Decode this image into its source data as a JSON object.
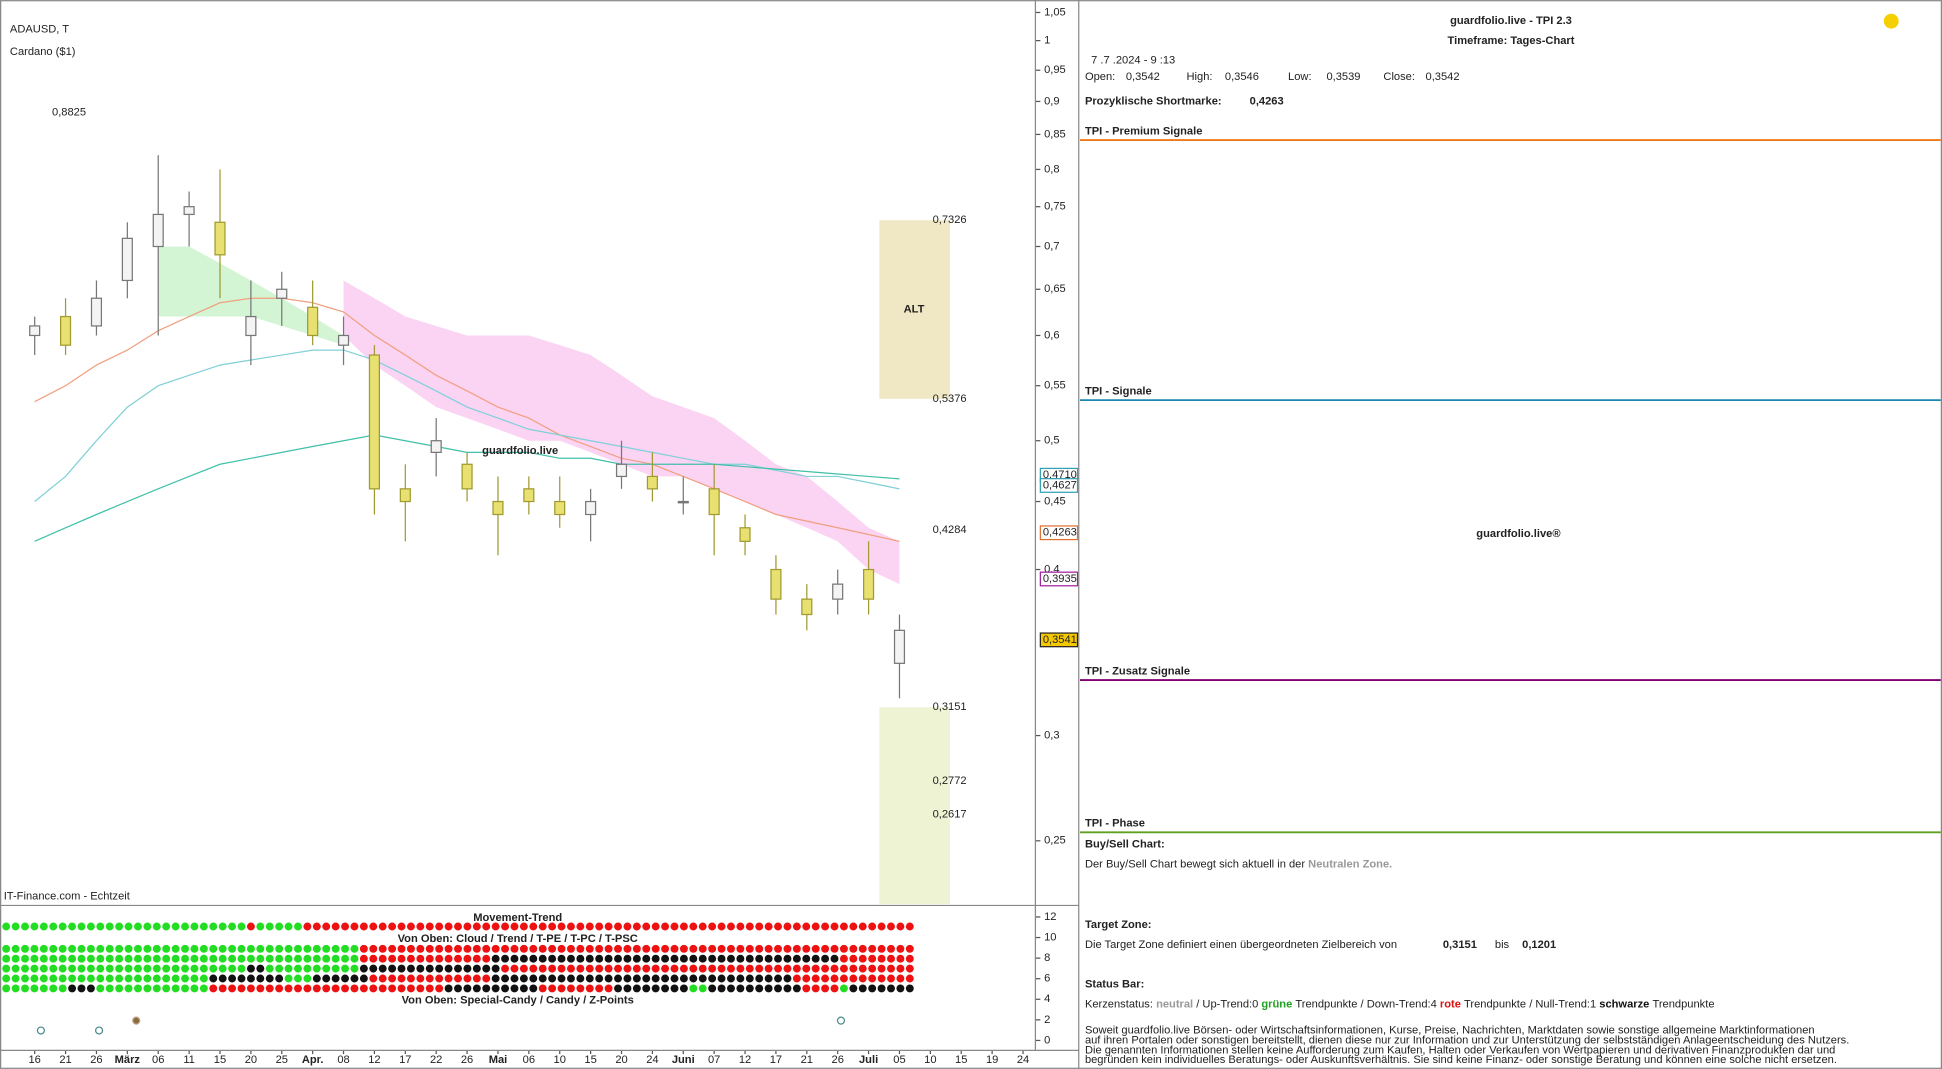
{
  "chart_data": {
    "type": "candlestick",
    "title": "ADAUSD, T",
    "subtitle": "Cardano ($1)",
    "source": "IT-Finance.com - Echtzeit",
    "watermark": "guardfolio.live",
    "log": true,
    "ylim": [
      0.224,
      1.05
    ],
    "yticks": [
      {
        "value": 0.25,
        "label": "0,25"
      },
      {
        "value": 0.3,
        "label": "0,3"
      },
      {
        "value": 0.4,
        "label": "0,4"
      },
      {
        "value": 0.45,
        "label": "0,45"
      },
      {
        "value": 0.5,
        "label": "0,5"
      },
      {
        "value": 0.55,
        "label": "0,55"
      },
      {
        "value": 0.6,
        "label": "0,6"
      },
      {
        "value": 0.65,
        "label": "0,65"
      },
      {
        "value": 0.7,
        "label": "0,7"
      },
      {
        "value": 0.75,
        "label": "0,75"
      },
      {
        "value": 0.8,
        "label": "0,8"
      },
      {
        "value": 0.85,
        "label": "0,85"
      },
      {
        "value": 0.9,
        "label": "0,9"
      },
      {
        "value": 0.95,
        "label": "0,95"
      },
      1,
      {
        "value": 1.05,
        "label": "1,05"
      }
    ],
    "categories": [
      "16",
      "21",
      "26",
      "März",
      "06",
      "11",
      "15",
      "20",
      "25",
      "Apr.",
      "08",
      "12",
      "17",
      "22",
      "26",
      "Mai",
      "06",
      "10",
      "15",
      "20",
      "24",
      "Juni",
      "07",
      "12",
      "17",
      "21",
      "26",
      "Juli",
      "05",
      "10",
      "15",
      "19",
      "24"
    ],
    "open": [
      0.6,
      0.62,
      0.61,
      0.66,
      0.7,
      0.74,
      0.73,
      0.6,
      0.64,
      0.63,
      0.59,
      0.58,
      0.46,
      0.49,
      0.48,
      0.45,
      0.46,
      0.45,
      0.44,
      0.47,
      0.47,
      0.45,
      0.46,
      0.43,
      0.4,
      0.38,
      0.38,
      0.4,
      0.34,
      null,
      null,
      null,
      null
    ],
    "high": [
      0.62,
      0.64,
      0.66,
      0.73,
      0.82,
      0.77,
      0.8,
      0.66,
      0.67,
      0.66,
      0.62,
      0.59,
      0.48,
      0.52,
      0.49,
      0.47,
      0.47,
      0.47,
      0.46,
      0.5,
      0.49,
      0.47,
      0.48,
      0.44,
      0.41,
      0.39,
      0.4,
      0.42,
      0.37,
      null,
      null,
      null,
      null
    ],
    "low": [
      0.58,
      0.58,
      0.6,
      0.64,
      0.6,
      0.7,
      0.64,
      0.57,
      0.61,
      0.59,
      0.57,
      0.44,
      0.42,
      0.47,
      0.45,
      0.41,
      0.44,
      0.43,
      0.42,
      0.46,
      0.45,
      0.44,
      0.41,
      0.41,
      0.37,
      0.36,
      0.37,
      0.37,
      0.32,
      null,
      null,
      null,
      null
    ],
    "close": [
      0.61,
      0.59,
      0.64,
      0.71,
      0.74,
      0.75,
      0.69,
      0.62,
      0.65,
      0.6,
      0.6,
      0.46,
      0.45,
      0.5,
      0.46,
      0.44,
      0.45,
      0.44,
      0.45,
      0.48,
      0.46,
      0.45,
      0.44,
      0.42,
      0.38,
      0.37,
      0.39,
      0.38,
      0.36,
      null,
      null,
      null,
      null
    ],
    "up_color": "#f4f4f4",
    "up_stroke": "#777777",
    "down_color": "#e8e070",
    "down_stroke": "#a09a30",
    "overlays": [
      {
        "color": "#f0a080",
        "values": [
          0.535,
          0.55,
          0.57,
          0.585,
          0.605,
          0.62,
          0.635,
          0.64,
          0.64,
          0.635,
          0.625,
          0.6,
          0.58,
          0.56,
          0.545,
          0.53,
          0.52,
          0.505,
          0.495,
          0.485,
          0.48,
          0.47,
          0.46,
          0.45,
          0.44,
          0.435,
          0.43,
          0.425,
          0.42,
          null,
          null,
          null,
          null
        ]
      },
      {
        "color": "#80d0d8",
        "values": [
          0.45,
          0.47,
          0.5,
          0.53,
          0.55,
          0.56,
          0.57,
          0.575,
          0.58,
          0.585,
          0.585,
          0.575,
          0.56,
          0.545,
          0.53,
          0.52,
          0.51,
          0.505,
          0.5,
          0.495,
          0.49,
          0.485,
          0.48,
          0.48,
          0.475,
          0.47,
          0.47,
          0.465,
          0.46,
          null,
          null,
          null,
          null
        ]
      },
      {
        "color": "#40c0a8",
        "values": [
          0.42,
          0.43,
          0.44,
          0.45,
          0.46,
          0.47,
          0.48,
          0.485,
          0.49,
          0.495,
          0.5,
          0.505,
          0.5,
          0.495,
          0.49,
          0.49,
          0.49,
          0.485,
          0.485,
          0.48,
          0.48,
          0.48,
          0.48,
          0.478,
          0.476,
          0.474,
          0.472,
          0.47,
          0.468,
          null,
          null,
          null,
          null
        ]
      }
    ],
    "clouds": [
      {
        "color": "#d4f5d4",
        "upper": [
          null,
          null,
          null,
          null,
          0.7,
          0.7,
          0.68,
          0.66,
          0.64,
          0.62,
          0.6,
          null,
          null,
          null,
          null,
          null,
          null,
          null,
          null,
          null,
          null,
          null,
          null,
          null,
          null,
          null,
          null,
          null,
          null,
          null,
          null,
          null,
          null
        ],
        "lower": [
          null,
          null,
          null,
          null,
          0.62,
          0.62,
          0.62,
          0.62,
          0.61,
          0.6,
          0.59,
          null,
          null,
          null,
          null,
          null,
          null,
          null,
          null,
          null,
          null,
          null,
          null,
          null,
          null,
          null,
          null,
          null,
          null,
          null,
          null,
          null,
          null
        ]
      },
      {
        "color": "#fbd4f4",
        "upper": [
          null,
          null,
          null,
          null,
          null,
          null,
          null,
          null,
          null,
          null,
          0.66,
          0.64,
          0.62,
          0.61,
          0.6,
          0.6,
          0.6,
          0.59,
          0.58,
          0.56,
          0.54,
          0.53,
          0.52,
          0.5,
          0.48,
          0.47,
          0.45,
          0.43,
          0.42,
          null,
          null,
          null,
          null
        ],
        "lower": [
          null,
          null,
          null,
          null,
          null,
          null,
          null,
          null,
          null,
          null,
          0.6,
          0.57,
          0.55,
          0.53,
          0.52,
          0.51,
          0.5,
          0.5,
          0.49,
          0.48,
          0.47,
          0.47,
          0.46,
          0.45,
          0.44,
          0.43,
          0.42,
          0.4,
          0.39,
          null,
          null,
          null,
          null
        ]
      }
    ],
    "boxes": [
      {
        "label": "ALT",
        "top": 0.7326,
        "bottom": 0.5376,
        "color": "#f0e8c4"
      },
      {
        "top": 0.3151,
        "color": "#eef3d4"
      }
    ],
    "box_levels": [
      {
        "value": 0.7326,
        "label": "0,7326",
        "color": "#888888"
      },
      {
        "value": 0.5376,
        "label": "0,5376",
        "color": "#888888"
      },
      {
        "value": 0.4284,
        "label": "0,4284",
        "color": "#e070d0"
      },
      {
        "value": 0.3151,
        "label": "0,3151",
        "color": "#888888"
      },
      {
        "value": 0.2772,
        "label": "0,2772",
        "color": "#888888"
      },
      {
        "value": 0.2617,
        "label": "0,2617",
        "color": "#e070d0"
      }
    ],
    "high_label": {
      "value": 0.8825,
      "label": "0,8825",
      "color": "#b09050"
    },
    "price_markers": [
      {
        "value": 0.471,
        "label": "0,4710",
        "color": "#30a0b0",
        "fill": "#ffffff"
      },
      {
        "value": 0.4627,
        "label": "0,4627",
        "color": "#30a0b0",
        "fill": "#ffffff"
      },
      {
        "value": 0.4263,
        "label": "0,4263",
        "color": "#e07030",
        "fill": "#ffffff"
      },
      {
        "value": 0.3935,
        "label": "0,3935",
        "color": "#a020a0",
        "fill": "#ffffff"
      },
      {
        "value": 0.3541,
        "label": "0,3541",
        "color": "#222222",
        "fill": "#f5c800"
      }
    ],
    "indicator": {
      "title": "Movement-Trend",
      "subtitle_top": "Von Oben: Cloud / Trend / T-PE / T-PC / T-PSC",
      "subtitle_bottom": "Von Oben: Special-Candy / Candy / Z-Points",
      "ylim": [
        0,
        13
      ],
      "yticks": [
        0,
        2,
        4,
        6,
        8,
        10,
        12
      ],
      "rows": [
        [
          {
            "color": "#22dd22",
            "count": 26
          },
          {
            "color": "#ee1111",
            "count": 1
          },
          {
            "color": "#22dd22",
            "count": 5
          },
          {
            "color": "#ee1111",
            "count": 65
          }
        ],
        [
          {
            "color": "#22dd22",
            "count": 38
          },
          {
            "color": "#ee1111",
            "count": 59
          }
        ],
        [
          {
            "color": "#22dd22",
            "count": 38
          },
          {
            "color": "#ee1111",
            "count": 14
          },
          {
            "color": "#111111",
            "count": 37
          },
          {
            "color": "#ee1111",
            "count": 8
          }
        ],
        [
          {
            "color": "#22dd22",
            "count": 26
          },
          {
            "color": "#111111",
            "count": 2
          },
          {
            "color": "#22dd22",
            "count": 10
          },
          {
            "color": "#111111",
            "count": 15
          },
          {
            "color": "#ee1111",
            "count": 44
          }
        ],
        [
          {
            "color": "#22dd22",
            "count": 22
          },
          {
            "color": "#111111",
            "count": 8
          },
          {
            "color": "#22dd22",
            "count": 3
          },
          {
            "color": "#111111",
            "count": 6
          },
          {
            "color": "#ee1111",
            "count": 13
          },
          {
            "color": "#111111",
            "count": 32
          },
          {
            "color": "#ee1111",
            "count": 13
          }
        ],
        [
          {
            "color": "#22dd22",
            "count": 7
          },
          {
            "color": "#111111",
            "count": 3
          },
          {
            "color": "#22dd22",
            "count": 12
          },
          {
            "color": "#ee1111",
            "count": 25
          },
          {
            "color": "#111111",
            "count": 10
          },
          {
            "color": "#ee1111",
            "count": 8
          },
          {
            "color": "#111111",
            "count": 8
          },
          {
            "color": "#22dd22",
            "count": 2
          },
          {
            "color": "#111111",
            "count": 10
          },
          {
            "color": "#ee1111",
            "count": 4
          },
          {
            "color": "#22dd22",
            "count": 1
          },
          {
            "color": "#111111",
            "count": 7
          }
        ]
      ]
    }
  },
  "panel": {
    "title": "guardfolio.live - TPI 2.3",
    "timeframe": "Timeframe: Tages-Chart",
    "timestamp": "7 .7 .2024 - 9 :13",
    "ohlc": [
      [
        "Open:",
        "0,3542"
      ],
      [
        "High:",
        "0,3546"
      ],
      [
        "Low:",
        "0,3539"
      ],
      [
        "Close:",
        "0,3542"
      ]
    ],
    "shortmarke": [
      "Prozyklische Shortmarke:",
      "0,4263"
    ],
    "sections": [
      {
        "title": "TPI - Premium Signale",
        "color": "#f07818"
      },
      {
        "title": "TPI - Signale",
        "color": "#1a88b0"
      },
      {
        "title": "TPI - Zusatz Signale",
        "color": "#800070"
      },
      {
        "title": "TPI - Phase",
        "color": "#60a020"
      }
    ],
    "watermark": "guardfolio.live®",
    "buysell": {
      "heading": "Buy/Sell Chart:",
      "text": "Der Buy/Sell Chart bewegt sich aktuell in der",
      "zone": "Neutralen Zone."
    },
    "target": {
      "heading": "Target Zone:",
      "text": "Die Target Zone definiert einen übergeordneten Zielbereich von",
      "from": "0,3151",
      "bis": "bis",
      "to": "0,1201"
    },
    "status": {
      "heading": "Status Bar:",
      "parts": [
        {
          "text": "Kerzenstatus:",
          "color": "#222222",
          "bold": false
        },
        {
          "text": "neutral",
          "color": "#999999",
          "bold": true
        },
        {
          "text": "/ Up-Trend:0",
          "color": "#222222",
          "bold": false
        },
        {
          "text": "grüne",
          "color": "#20a020",
          "bold": true
        },
        {
          "text": "Trendpunkte",
          "color": "#222222",
          "bold": false
        },
        {
          "text": "/ Down-Trend:4",
          "color": "#222222",
          "bold": false
        },
        {
          "text": "rote",
          "color": "#dd1111",
          "bold": true
        },
        {
          "text": "Trendpunkte",
          "color": "#222222",
          "bold": false
        },
        {
          "text": "/ Null-Trend:1",
          "color": "#222222",
          "bold": false
        },
        {
          "text": "schwarze",
          "color": "#111111",
          "bold": true
        },
        {
          "text": "Trendpunkte",
          "color": "#222222",
          "bold": false
        }
      ]
    },
    "disclaimer": [
      "Soweit guardfolio.live Börsen- oder Wirtschaftsinformationen, Kurse, Preise, Nachrichten, Marktdaten sowie sonstige allgemeine Marktinformationen",
      "auf ihren Portalen oder sonstigen bereitstellt, dienen diese nur zur Information und zur Unterstützung der selbstständigen Anlageentscheidung des Nutzers.",
      "Die genannten Informationen stellen keine Aufforderung zum Kaufen, Halten oder Verkaufen von Wertpapieren und derivativen Finanzprodukten dar und",
      "begründen kein individuelles Beratungs- oder Auskunftsverhältnis. Sie sind keine Finanz- oder sonstige Beratung und können eine solche nicht ersetzen."
    ]
  }
}
